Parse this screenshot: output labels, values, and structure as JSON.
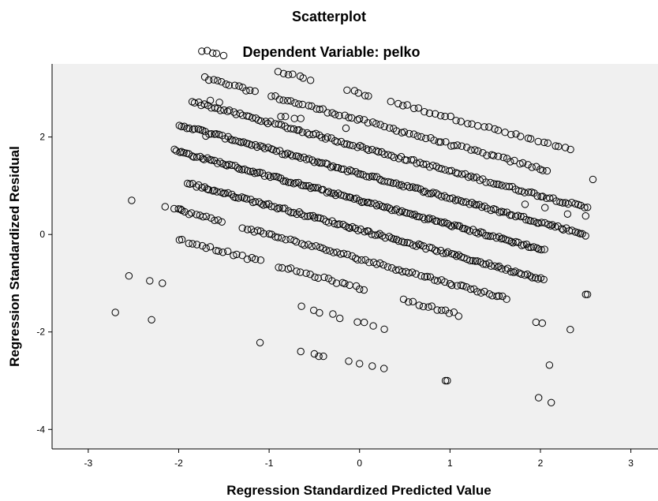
{
  "chart_data": {
    "type": "scatter",
    "title": "Scatterplot",
    "subtitle": "Dependent Variable: pelko",
    "xlabel": "Regression Standardized Predicted Value",
    "ylabel": "Regression Standardized Residual",
    "xlim": [
      -3.4,
      3.3
    ],
    "ylim": [
      -4.4,
      3.5
    ],
    "xticks": [
      -3,
      -2,
      -1,
      0,
      1,
      2,
      3
    ],
    "yticks": [
      -4,
      -2,
      0,
      2
    ],
    "grid": false,
    "legend": "none",
    "colors": {
      "plot_background": "#f0f0f0",
      "marker_stroke": "#000000",
      "axis": "#000000"
    },
    "marker": "open-circle",
    "bands": [
      {
        "residual_intercept": 2.9,
        "x_start": -1.75,
        "x_end": 2.35,
        "step": 0.06,
        "gaps": [
          [
            -1.45,
            -0.95
          ],
          [
            -0.5,
            -0.15
          ],
          [
            0.15,
            0.35
          ]
        ],
        "jitter": 0.03
      },
      {
        "residual_intercept": 2.35,
        "x_start": -1.7,
        "x_end": 2.1,
        "step": 0.045,
        "gaps": [
          [
            -1.15,
            -1.0
          ]
        ],
        "jitter": 0.03
      },
      {
        "residual_intercept": 1.8,
        "x_start": -1.85,
        "x_end": 2.55,
        "step": 0.035,
        "gaps": [],
        "jitter": 0.03
      },
      {
        "residual_intercept": 1.25,
        "x_start": -2.0,
        "x_end": 2.5,
        "step": 0.03,
        "gaps": [],
        "jitter": 0.03
      },
      {
        "residual_intercept": 0.7,
        "x_start": -2.05,
        "x_end": 2.05,
        "step": 0.028,
        "gaps": [],
        "jitter": 0.03
      },
      {
        "residual_intercept": 0.1,
        "x_start": -1.9,
        "x_end": 2.05,
        "step": 0.03,
        "gaps": [],
        "jitter": 0.03
      },
      {
        "residual_intercept": -0.5,
        "x_start": -2.05,
        "x_end": 1.65,
        "step": 0.04,
        "gaps": [
          [
            -1.5,
            -1.3
          ]
        ],
        "jitter": 0.03
      },
      {
        "residual_intercept": -1.1,
        "x_start": -2.0,
        "x_end": 1.1,
        "step": 0.05,
        "gaps": [
          [
            -1.05,
            -0.9
          ],
          [
            0.1,
            0.5
          ]
        ],
        "jitter": 0.03
      },
      {
        "residual_intercept": -1.8,
        "x_start": -0.62,
        "x_end": 0.28,
        "step": 0.1,
        "gaps": [
          [
            -0.15,
            -0.05
          ]
        ],
        "jitter": 0.03
      }
    ],
    "band_slope": -0.5,
    "points": [
      [
        -2.7,
        -1.6
      ],
      [
        -2.55,
        -0.85
      ],
      [
        -2.52,
        0.7
      ],
      [
        -2.32,
        -0.95
      ],
      [
        -2.3,
        -1.75
      ],
      [
        -2.18,
        -1.0
      ],
      [
        -2.15,
        0.57
      ],
      [
        -1.98,
        0.52
      ],
      [
        -1.7,
        2.02
      ],
      [
        -1.65,
        2.75
      ],
      [
        -1.55,
        2.71
      ],
      [
        -1.1,
        -2.22
      ],
      [
        -0.65,
        -2.4
      ],
      [
        -0.5,
        -2.45
      ],
      [
        -0.45,
        -2.5
      ],
      [
        -0.4,
        -2.5
      ],
      [
        -0.12,
        -2.6
      ],
      [
        0.0,
        -2.65
      ],
      [
        0.14,
        -2.7
      ],
      [
        0.27,
        -2.75
      ],
      [
        0.95,
        -3.0
      ],
      [
        0.97,
        -3.0
      ],
      [
        1.98,
        -3.35
      ],
      [
        2.12,
        -3.45
      ],
      [
        2.1,
        -2.68
      ],
      [
        1.95,
        -1.8
      ],
      [
        2.02,
        -1.82
      ],
      [
        2.33,
        -1.95
      ],
      [
        2.52,
        -1.23
      ],
      [
        2.5,
        -1.23
      ],
      [
        2.3,
        0.42
      ],
      [
        2.5,
        0.38
      ],
      [
        2.58,
        1.13
      ],
      [
        2.05,
        0.55
      ],
      [
        1.83,
        0.62
      ],
      [
        -0.15,
        2.18
      ],
      [
        -0.87,
        2.42
      ],
      [
        -0.82,
        2.42
      ],
      [
        -0.72,
        2.38
      ],
      [
        -0.65,
        2.38
      ]
    ]
  }
}
